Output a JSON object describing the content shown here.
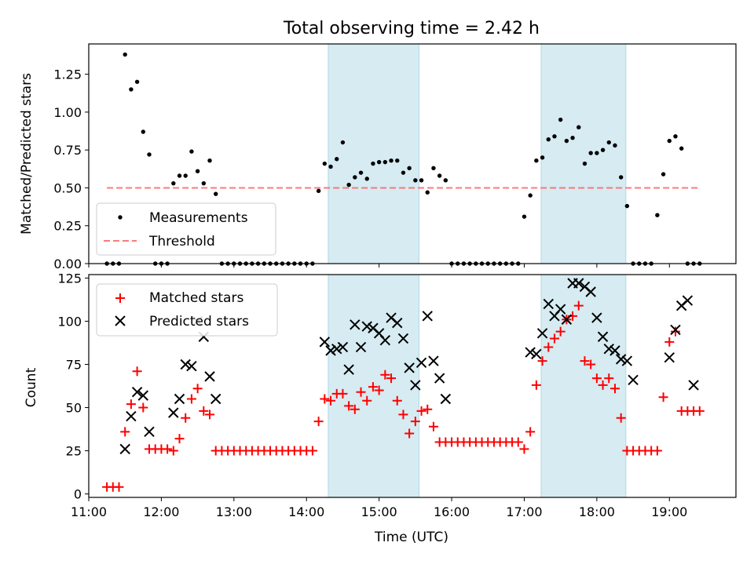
{
  "title": "Total observing time = 2.42 h",
  "chart_data": [
    {
      "type": "scatter",
      "ylabel": "Matched/Predicted stars",
      "xlabel": "",
      "xlim": [
        "11:00",
        "19:55"
      ],
      "ylim": [
        0,
        1.45
      ],
      "yticks": [
        "0.00",
        "0.25",
        "0.50",
        "0.75",
        "1.00",
        "1.25"
      ],
      "shaded_intervals": [
        [
          "14:18",
          "15:33"
        ],
        [
          "17:14",
          "18:24"
        ]
      ],
      "legend": {
        "position": "lower-left",
        "entries": [
          "Measurements",
          "Threshold"
        ]
      },
      "series": [
        {
          "name": "Measurements",
          "marker": "dot",
          "color": "#000000",
          "points": [
            [
              "11:15",
              0
            ],
            [
              "11:20",
              0
            ],
            [
              "11:25",
              0
            ],
            [
              "11:30",
              1.38
            ],
            [
              "11:35",
              1.15
            ],
            [
              "11:40",
              1.2
            ],
            [
              "11:45",
              0.87
            ],
            [
              "11:50",
              0.72
            ],
            [
              "11:55",
              0
            ],
            [
              "12:00",
              0
            ],
            [
              "12:05",
              0
            ],
            [
              "12:10",
              0.53
            ],
            [
              "12:15",
              0.58
            ],
            [
              "12:20",
              0.58
            ],
            [
              "12:25",
              0.74
            ],
            [
              "12:30",
              0.61
            ],
            [
              "12:35",
              0.53
            ],
            [
              "12:40",
              0.68
            ],
            [
              "12:45",
              0.46
            ],
            [
              "12:50",
              0
            ],
            [
              "12:55",
              0
            ],
            [
              "13:00",
              0
            ],
            [
              "13:05",
              0
            ],
            [
              "13:10",
              0
            ],
            [
              "13:15",
              0
            ],
            [
              "13:20",
              0
            ],
            [
              "13:25",
              0
            ],
            [
              "13:30",
              0
            ],
            [
              "13:35",
              0
            ],
            [
              "13:40",
              0
            ],
            [
              "13:45",
              0
            ],
            [
              "13:50",
              0
            ],
            [
              "13:55",
              0
            ],
            [
              "14:00",
              0
            ],
            [
              "14:05",
              0
            ],
            [
              "14:10",
              0.48
            ],
            [
              "14:15",
              0.66
            ],
            [
              "14:20",
              0.64
            ],
            [
              "14:25",
              0.69
            ],
            [
              "14:30",
              0.8
            ],
            [
              "14:35",
              0.52
            ],
            [
              "14:40",
              0.57
            ],
            [
              "14:45",
              0.6
            ],
            [
              "14:50",
              0.56
            ],
            [
              "14:55",
              0.66
            ],
            [
              "15:00",
              0.67
            ],
            [
              "15:05",
              0.67
            ],
            [
              "15:10",
              0.68
            ],
            [
              "15:15",
              0.68
            ],
            [
              "15:20",
              0.6
            ],
            [
              "15:25",
              0.63
            ],
            [
              "15:30",
              0.55
            ],
            [
              "15:35",
              0.55
            ],
            [
              "15:40",
              0.47
            ],
            [
              "15:45",
              0.63
            ],
            [
              "15:50",
              0.58
            ],
            [
              "15:55",
              0.55
            ],
            [
              "16:00",
              0
            ],
            [
              "16:05",
              0
            ],
            [
              "16:10",
              0
            ],
            [
              "16:15",
              0
            ],
            [
              "16:20",
              0
            ],
            [
              "16:25",
              0
            ],
            [
              "16:30",
              0
            ],
            [
              "16:35",
              0
            ],
            [
              "16:40",
              0
            ],
            [
              "16:45",
              0
            ],
            [
              "16:50",
              0
            ],
            [
              "16:55",
              0
            ],
            [
              "17:00",
              0.31
            ],
            [
              "17:05",
              0.45
            ],
            [
              "17:10",
              0.68
            ],
            [
              "17:15",
              0.7
            ],
            [
              "17:20",
              0.82
            ],
            [
              "17:25",
              0.84
            ],
            [
              "17:30",
              0.95
            ],
            [
              "17:35",
              0.81
            ],
            [
              "17:40",
              0.83
            ],
            [
              "17:45",
              0.9
            ],
            [
              "17:50",
              0.66
            ],
            [
              "17:55",
              0.73
            ],
            [
              "18:00",
              0.73
            ],
            [
              "18:05",
              0.75
            ],
            [
              "18:10",
              0.8
            ],
            [
              "18:15",
              0.78
            ],
            [
              "18:20",
              0.57
            ],
            [
              "18:25",
              0.38
            ],
            [
              "18:30",
              0
            ],
            [
              "18:35",
              0
            ],
            [
              "18:40",
              0
            ],
            [
              "18:45",
              0
            ],
            [
              "18:50",
              0.32
            ],
            [
              "18:55",
              0.59
            ],
            [
              "19:00",
              0.81
            ],
            [
              "19:05",
              0.84
            ],
            [
              "19:10",
              0.76
            ],
            [
              "19:15",
              0
            ],
            [
              "19:20",
              0
            ],
            [
              "19:25",
              0
            ]
          ]
        },
        {
          "name": "Threshold",
          "style": "dashed",
          "color": "#ff6b6b",
          "points": [
            [
              "11:15",
              0.5
            ],
            [
              "19:25",
              0.5
            ]
          ]
        }
      ]
    },
    {
      "type": "scatter",
      "ylabel": "Count",
      "xlabel": "Time (UTC)",
      "xlim": [
        "11:00",
        "19:55"
      ],
      "ylim": [
        -2,
        127
      ],
      "yticks": [
        "0",
        "25",
        "50",
        "75",
        "100",
        "125"
      ],
      "xticks": [
        "11:00",
        "12:00",
        "13:00",
        "14:00",
        "15:00",
        "16:00",
        "17:00",
        "18:00",
        "19:00"
      ],
      "shaded_intervals": [
        [
          "14:18",
          "15:33"
        ],
        [
          "17:14",
          "18:24"
        ]
      ],
      "legend": {
        "position": "top-left",
        "entries": [
          "Matched stars",
          "Predicted stars"
        ]
      },
      "series": [
        {
          "name": "Matched stars",
          "marker": "plus",
          "color": "#ff0000",
          "points": [
            [
              "11:15",
              4
            ],
            [
              "11:20",
              4
            ],
            [
              "11:25",
              4
            ],
            [
              "11:30",
              36
            ],
            [
              "11:35",
              52
            ],
            [
              "11:40",
              71
            ],
            [
              "11:45",
              50
            ],
            [
              "11:50",
              26
            ],
            [
              "11:55",
              26
            ],
            [
              "12:00",
              26
            ],
            [
              "12:05",
              26
            ],
            [
              "12:10",
              25
            ],
            [
              "12:15",
              32
            ],
            [
              "12:20",
              44
            ],
            [
              "12:25",
              55
            ],
            [
              "12:30",
              61
            ],
            [
              "12:35",
              48
            ],
            [
              "12:40",
              46
            ],
            [
              "12:45",
              25
            ],
            [
              "12:50",
              25
            ],
            [
              "12:55",
              25
            ],
            [
              "13:00",
              25
            ],
            [
              "13:05",
              25
            ],
            [
              "13:10",
              25
            ],
            [
              "13:15",
              25
            ],
            [
              "13:20",
              25
            ],
            [
              "13:25",
              25
            ],
            [
              "13:30",
              25
            ],
            [
              "13:35",
              25
            ],
            [
              "13:40",
              25
            ],
            [
              "13:45",
              25
            ],
            [
              "13:50",
              25
            ],
            [
              "13:55",
              25
            ],
            [
              "14:00",
              25
            ],
            [
              "14:05",
              25
            ],
            [
              "14:10",
              42
            ],
            [
              "14:15",
              55
            ],
            [
              "14:20",
              54
            ],
            [
              "14:25",
              58
            ],
            [
              "14:30",
              58
            ],
            [
              "14:35",
              51
            ],
            [
              "14:40",
              49
            ],
            [
              "14:45",
              59
            ],
            [
              "14:50",
              54
            ],
            [
              "14:55",
              62
            ],
            [
              "15:00",
              60
            ],
            [
              "15:05",
              69
            ],
            [
              "15:10",
              67
            ],
            [
              "15:15",
              54
            ],
            [
              "15:20",
              46
            ],
            [
              "15:25",
              35
            ],
            [
              "15:30",
              42
            ],
            [
              "15:35",
              48
            ],
            [
              "15:40",
              49
            ],
            [
              "15:45",
              39
            ],
            [
              "15:50",
              30
            ],
            [
              "15:55",
              30
            ],
            [
              "16:00",
              30
            ],
            [
              "16:05",
              30
            ],
            [
              "16:10",
              30
            ],
            [
              "16:15",
              30
            ],
            [
              "16:20",
              30
            ],
            [
              "16:25",
              30
            ],
            [
              "16:30",
              30
            ],
            [
              "16:35",
              30
            ],
            [
              "16:40",
              30
            ],
            [
              "16:45",
              30
            ],
            [
              "16:50",
              30
            ],
            [
              "16:55",
              30
            ],
            [
              "17:00",
              26
            ],
            [
              "17:05",
              36
            ],
            [
              "17:10",
              63
            ],
            [
              "17:15",
              77
            ],
            [
              "17:20",
              85
            ],
            [
              "17:25",
              90
            ],
            [
              "17:30",
              94
            ],
            [
              "17:35",
              101
            ],
            [
              "17:40",
              103
            ],
            [
              "17:45",
              109
            ],
            [
              "17:50",
              77
            ],
            [
              "17:55",
              75
            ],
            [
              "18:00",
              67
            ],
            [
              "18:05",
              63
            ],
            [
              "18:10",
              67
            ],
            [
              "18:15",
              61
            ],
            [
              "18:20",
              44
            ],
            [
              "18:25",
              25
            ],
            [
              "18:30",
              25
            ],
            [
              "18:35",
              25
            ],
            [
              "18:40",
              25
            ],
            [
              "18:45",
              25
            ],
            [
              "18:50",
              25
            ],
            [
              "18:55",
              56
            ],
            [
              "19:00",
              88
            ],
            [
              "19:05",
              94
            ],
            [
              "19:10",
              48
            ],
            [
              "19:15",
              48
            ],
            [
              "19:20",
              48
            ],
            [
              "19:25",
              48
            ]
          ]
        },
        {
          "name": "Predicted stars",
          "marker": "x",
          "color": "#000000",
          "points": [
            [
              "11:30",
              26
            ],
            [
              "11:35",
              45
            ],
            [
              "11:40",
              59
            ],
            [
              "11:45",
              57
            ],
            [
              "11:50",
              36
            ],
            [
              "12:10",
              47
            ],
            [
              "12:15",
              55
            ],
            [
              "12:20",
              75
            ],
            [
              "12:25",
              74
            ],
            [
              "12:30",
              100
            ],
            [
              "12:35",
              91
            ],
            [
              "12:40",
              68
            ],
            [
              "12:45",
              55
            ],
            [
              "14:15",
              88
            ],
            [
              "14:20",
              83
            ],
            [
              "14:25",
              84
            ],
            [
              "14:30",
              85
            ],
            [
              "14:35",
              72
            ],
            [
              "14:40",
              98
            ],
            [
              "14:45",
              85
            ],
            [
              "14:50",
              97
            ],
            [
              "14:55",
              96
            ],
            [
              "15:00",
              93
            ],
            [
              "15:05",
              89
            ],
            [
              "15:10",
              102
            ],
            [
              "15:15",
              99
            ],
            [
              "15:20",
              90
            ],
            [
              "15:25",
              73
            ],
            [
              "15:30",
              63
            ],
            [
              "15:35",
              76
            ],
            [
              "15:40",
              103
            ],
            [
              "15:45",
              77
            ],
            [
              "15:50",
              67
            ],
            [
              "15:55",
              55
            ],
            [
              "17:05",
              82
            ],
            [
              "17:10",
              81
            ],
            [
              "17:15",
              93
            ],
            [
              "17:20",
              110
            ],
            [
              "17:25",
              103
            ],
            [
              "17:30",
              107
            ],
            [
              "17:35",
              101
            ],
            [
              "17:40",
              122
            ],
            [
              "17:45",
              122
            ],
            [
              "17:50",
              120
            ],
            [
              "17:55",
              117
            ],
            [
              "18:00",
              102
            ],
            [
              "18:05",
              91
            ],
            [
              "18:10",
              84
            ],
            [
              "18:15",
              83
            ],
            [
              "18:20",
              78
            ],
            [
              "18:25",
              77
            ],
            [
              "18:30",
              66
            ],
            [
              "19:00",
              79
            ],
            [
              "19:05",
              95
            ],
            [
              "19:10",
              109
            ],
            [
              "19:15",
              112
            ],
            [
              "19:20",
              63
            ]
          ]
        }
      ]
    }
  ]
}
